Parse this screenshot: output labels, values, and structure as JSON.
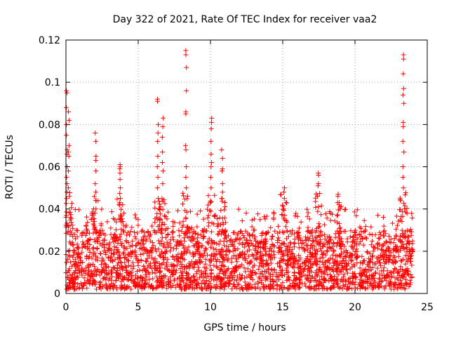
{
  "chart_data": {
    "type": "scatter",
    "title": "Day 322 of 2021, Rate Of TEC Index for receiver vaa2",
    "xlabel": "GPS time / hours",
    "ylabel": "ROTI / TECUs",
    "xlim": [
      0,
      25
    ],
    "ylim": [
      0,
      0.12
    ],
    "xticks": [
      0,
      5,
      10,
      15,
      20,
      25
    ],
    "xtick_labels": [
      "0",
      "5",
      "10",
      "15",
      "20",
      "25"
    ],
    "yticks": [
      0,
      0.02,
      0.04,
      0.06,
      0.08,
      0.1,
      0.12
    ],
    "ytick_labels": [
      "0",
      "0.02",
      "0.04",
      "0.06",
      "0.08",
      "0.1",
      "0.12"
    ],
    "grid": true,
    "marker": "+",
    "color": "#ff0000",
    "series": [
      {
        "name": "vaa2 ROTI",
        "background_band": {
          "x_range": [
            0,
            24
          ],
          "typical_max": 0.03,
          "note": "dense cloud of points mostly 0.002–0.03 across the whole day"
        },
        "spikes": [
          {
            "x": 0.05,
            "y_values": [
              0.096,
              0.095,
              0.088,
              0.08,
              0.075,
              0.068,
              0.066,
              0.06,
              0.055,
              0.052,
              0.048,
              0.045
            ]
          },
          {
            "x": 0.2,
            "y_values": [
              0.086,
              0.082,
              0.07,
              0.067,
              0.065,
              0.058,
              0.05
            ]
          },
          {
            "x": 2.05,
            "y_values": [
              0.076,
              0.072,
              0.065,
              0.063,
              0.058,
              0.052,
              0.048,
              0.044,
              0.04
            ]
          },
          {
            "x": 3.75,
            "y_values": [
              0.061,
              0.06,
              0.059,
              0.057,
              0.054,
              0.05,
              0.045,
              0.043
            ]
          },
          {
            "x": 6.35,
            "y_values": [
              0.092,
              0.091,
              0.08,
              0.076,
              0.072,
              0.065,
              0.06,
              0.055,
              0.05,
              0.045
            ]
          },
          {
            "x": 6.7,
            "y_values": [
              0.083,
              0.079,
              0.074,
              0.067,
              0.062,
              0.058,
              0.052
            ]
          },
          {
            "x": 8.3,
            "y_values": [
              0.115,
              0.113,
              0.107,
              0.096,
              0.086,
              0.085,
              0.07,
              0.068,
              0.06,
              0.055,
              0.05
            ]
          },
          {
            "x": 10.05,
            "y_values": [
              0.083,
              0.081,
              0.078,
              0.072,
              0.066,
              0.062,
              0.06,
              0.055,
              0.05
            ]
          },
          {
            "x": 10.8,
            "y_values": [
              0.068,
              0.064,
              0.059,
              0.058,
              0.052,
              0.048,
              0.045
            ]
          },
          {
            "x": 15.1,
            "y_values": [
              0.05,
              0.048,
              0.045,
              0.04
            ]
          },
          {
            "x": 17.45,
            "y_values": [
              0.057,
              0.056,
              0.052,
              0.051
            ]
          },
          {
            "x": 18.8,
            "y_values": [
              0.047,
              0.046,
              0.043
            ]
          },
          {
            "x": 23.35,
            "y_values": [
              0.113,
              0.111,
              0.104,
              0.097,
              0.094,
              0.09,
              0.081,
              0.079,
              0.072,
              0.067,
              0.06,
              0.055,
              0.05
            ]
          }
        ]
      }
    ]
  }
}
